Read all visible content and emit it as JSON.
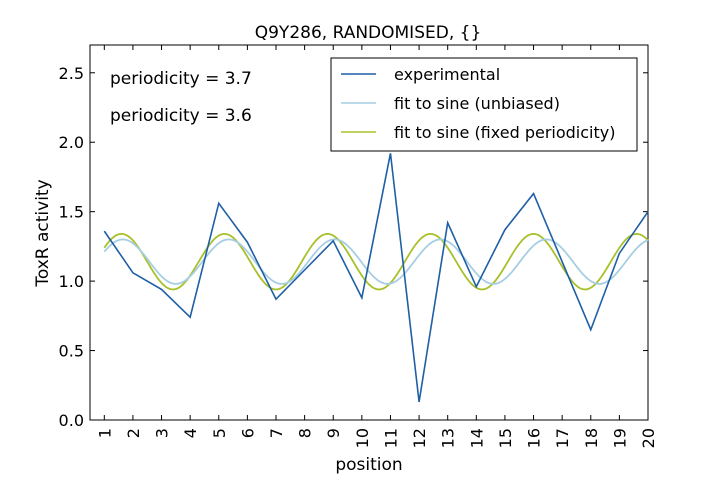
{
  "chart_data": {
    "type": "line",
    "title": "Q9Y286, RANDOMISED, {}",
    "xlabel": "position",
    "ylabel": "ToxR activity",
    "xlim": [
      0.5,
      20
    ],
    "ylim": [
      0,
      2.7
    ],
    "x_ticks": [
      1,
      2,
      3,
      4,
      5,
      6,
      7,
      8,
      9,
      10,
      11,
      12,
      13,
      14,
      15,
      16,
      17,
      18,
      19,
      20
    ],
    "x_tick_labels": [
      "1",
      "2",
      "3",
      "4",
      "5",
      "6",
      "7",
      "8",
      "9",
      "10",
      "11",
      "12",
      "13",
      "14",
      "15",
      "16",
      "17",
      "18",
      "19",
      "20"
    ],
    "y_ticks": [
      0,
      0.5,
      1.0,
      1.5,
      2.0,
      2.5
    ],
    "y_tick_labels": [
      "0.0",
      "0.5",
      "1.0",
      "1.5",
      "2.0",
      "2.5"
    ],
    "grid": false,
    "legend_position": "top-right",
    "series": [
      {
        "name": "experimental",
        "color": "#1f5fa6",
        "x": [
          1,
          2,
          3,
          4,
          5,
          6,
          7,
          8,
          9,
          10,
          11,
          12,
          13,
          14,
          15,
          16,
          17,
          18,
          19,
          20
        ],
        "values": [
          1.36,
          1.06,
          0.94,
          0.74,
          1.56,
          1.28,
          0.87,
          1.08,
          1.29,
          0.88,
          1.92,
          0.13,
          1.42,
          0.96,
          1.37,
          1.63,
          1.14,
          0.65,
          1.2,
          1.5
        ]
      },
      {
        "name": "fit to sine (unbiased)",
        "color": "#a6cee3",
        "model": {
          "offset": 1.14,
          "amplitude": 0.16,
          "period": 3.7,
          "phase_x": 1.65
        }
      },
      {
        "name": "fit to sine (fixed periodicity)",
        "color": "#a8c02a",
        "model": {
          "offset": 1.14,
          "amplitude": 0.2,
          "period": 3.6,
          "phase_x": 1.6
        }
      }
    ],
    "annotations": [
      {
        "text": "periodicity = 3.7",
        "color": "#a6cee3",
        "position": "top-left"
      },
      {
        "text": "periodicity = 3.6",
        "color": "#a8c02a",
        "position": "top-left"
      }
    ]
  }
}
